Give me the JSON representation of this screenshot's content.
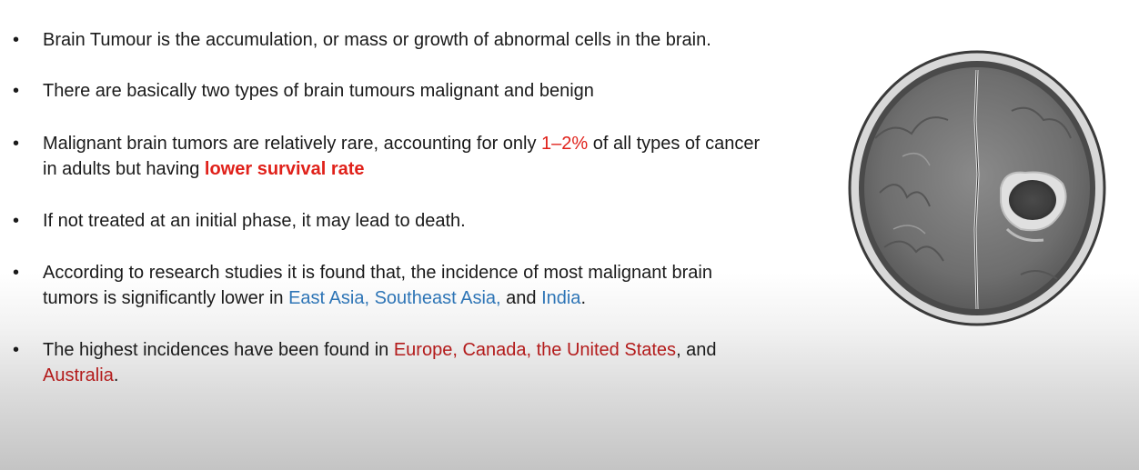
{
  "bullets": [
    {
      "symbol": "•",
      "text": "Brain Tumour is the accumulation, or mass or growth of abnormal cells in the brain."
    },
    {
      "symbol": "•",
      "text": "There are basically two types of brain tumours malignant and benign"
    },
    {
      "symbol": "•",
      "line1_a": "Malignant brain tumors are relatively rare, accounting for only ",
      "line1_highlight": "1–2%",
      "line1_b": " of all types of cancer",
      "line2_a": "in adults but having ",
      "line2_highlight": "lower survival rate"
    },
    {
      "symbol": "•",
      "text": "If not treated at an initial phase, it may lead to death."
    },
    {
      "symbol": "•",
      "line1": "According to research studies it is found that, the incidence of most malignant brain",
      "line2_a": "tumors is significantly lower in ",
      "region1": "East Asia, Southeast Asia,",
      "line2_b": " and ",
      "region2": "India",
      "line2_c": "."
    },
    {
      "symbol": "•",
      "line1_a": "The highest incidences have been found in ",
      "regions": "Europe, Canada, the United States",
      "line1_b": ", and",
      "line2_region": "Australia",
      "line2_c": "."
    }
  ],
  "colors": {
    "highlight_red": "#e0211a",
    "region_blue": "#2e75b6",
    "region_dark_red": "#b31b1b"
  },
  "image": {
    "icon": "brain-mri-scan-icon"
  }
}
